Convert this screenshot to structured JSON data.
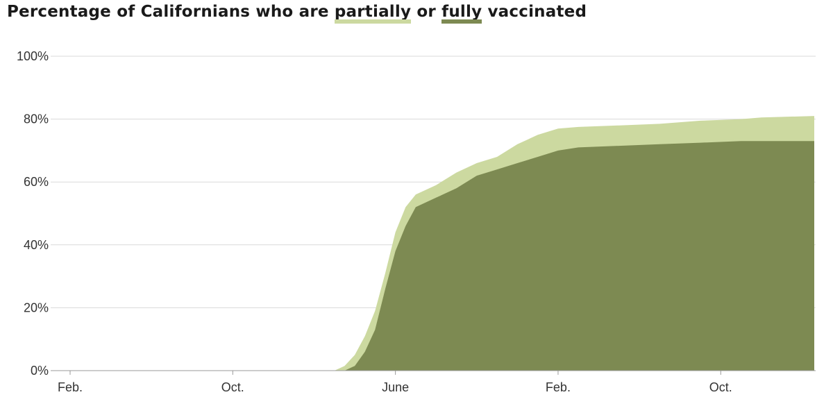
{
  "title": {
    "prefix": "Percentage of Californians who are ",
    "partial_word": "partially",
    "middle": " or ",
    "full_word": "fully",
    "suffix": " vaccinated"
  },
  "colors": {
    "partial": "#ccd9a0",
    "full": "#7d8a52",
    "grid": "#d9d9d9",
    "axis": "#999999",
    "text": "#333333"
  },
  "chart_data": {
    "type": "area",
    "title": "Percentage of Californians who are partially or fully vaccinated",
    "xlabel": "",
    "ylabel": "",
    "x_ticks": [
      "Feb.",
      "Oct.",
      "June",
      "Feb.",
      "Oct."
    ],
    "x_tick_months": [
      0,
      8,
      16,
      24,
      32
    ],
    "y_ticks": [
      "0%",
      "20%",
      "40%",
      "60%",
      "80%",
      "100%"
    ],
    "ylim": [
      0,
      100
    ],
    "xlim": [
      0,
      36.6
    ],
    "grid": true,
    "legend": "inline-title",
    "series": [
      {
        "name": "partially",
        "color": "#ccd9a0",
        "x": [
          0,
          13.0,
          13.5,
          14.0,
          14.5,
          15.0,
          15.5,
          16.0,
          16.5,
          17.0,
          18.0,
          19.0,
          20.0,
          21.0,
          22.0,
          23.0,
          24.0,
          25.0,
          27.0,
          29.0,
          31.0,
          33.0,
          34.0,
          36.6
        ],
        "values": [
          0,
          0,
          1.5,
          5,
          11,
          19,
          31,
          44,
          52,
          56,
          59,
          63,
          66,
          68,
          72,
          75,
          77,
          77.5,
          78,
          78.5,
          79.5,
          80,
          80.5,
          81
        ]
      },
      {
        "name": "fully",
        "color": "#7d8a52",
        "x": [
          0,
          13.5,
          14.0,
          14.5,
          15.0,
          15.5,
          16.0,
          16.5,
          17.0,
          18.0,
          19.0,
          20.0,
          21.0,
          22.0,
          23.0,
          24.0,
          25.0,
          27.0,
          29.0,
          31.0,
          33.0,
          36.6
        ],
        "values": [
          0,
          0,
          1.5,
          6,
          13,
          26,
          38,
          46,
          52,
          55,
          58,
          62,
          64,
          66,
          68,
          70,
          71,
          71.5,
          72,
          72.5,
          73,
          73
        ]
      }
    ]
  }
}
